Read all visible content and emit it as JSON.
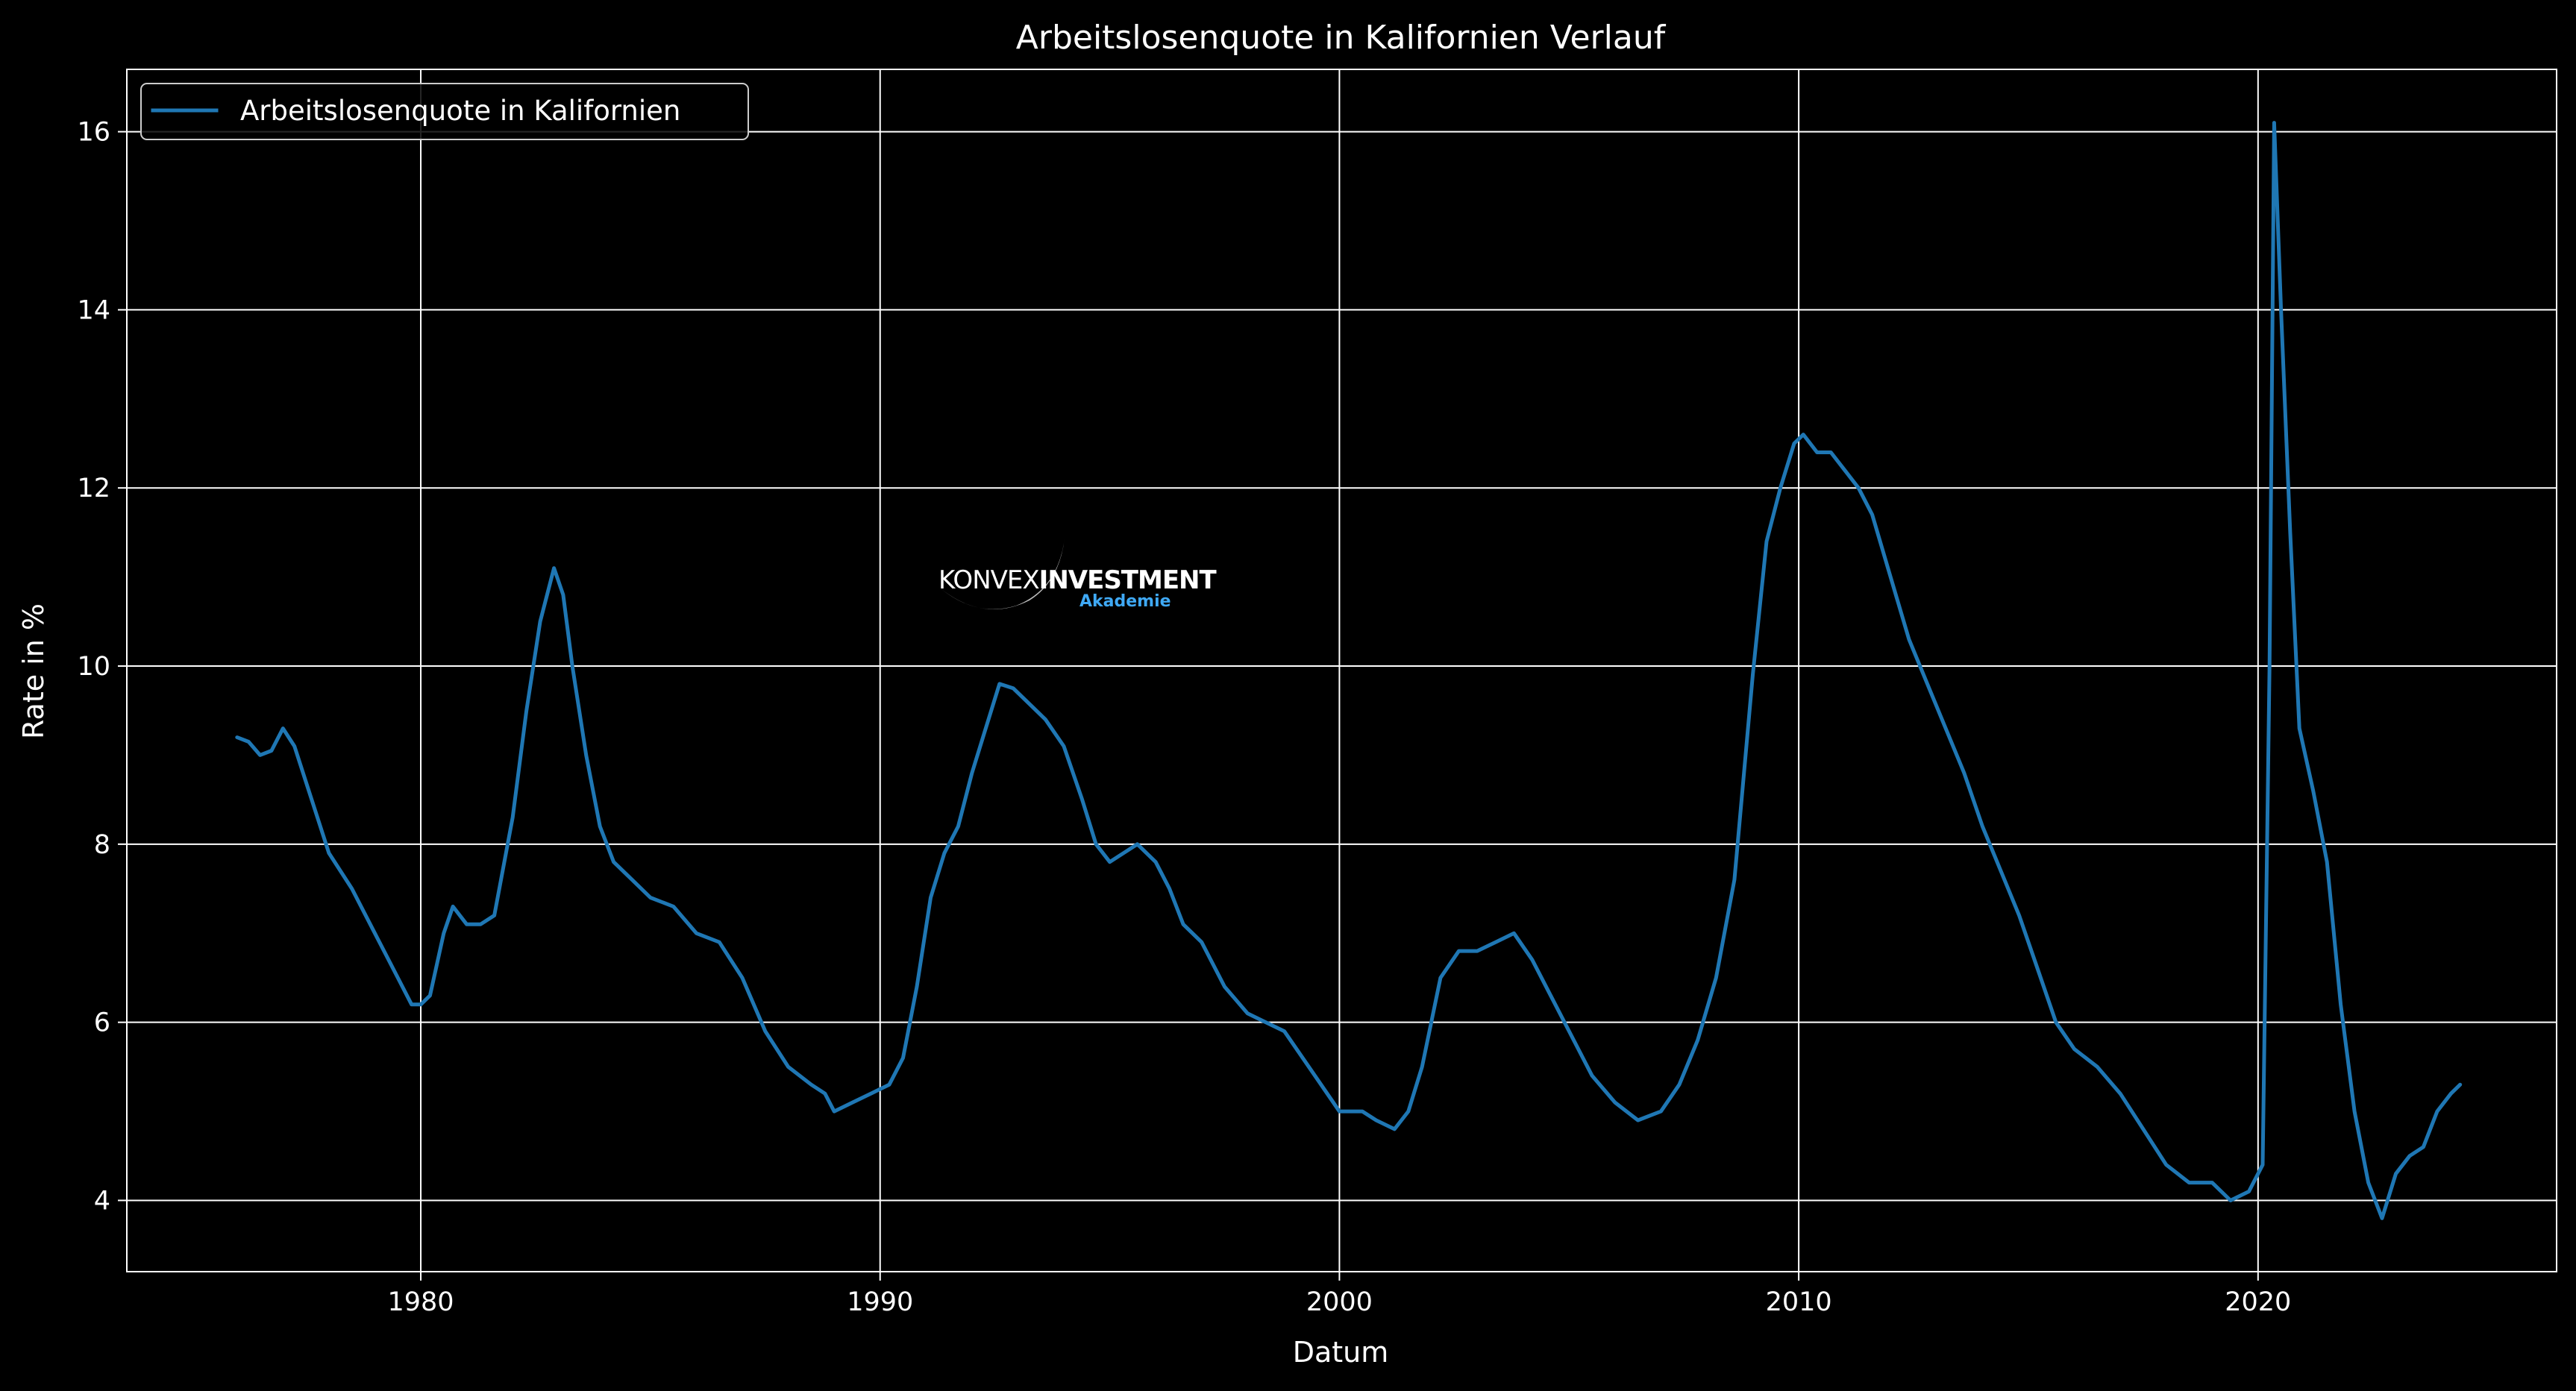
{
  "chart_data": {
    "type": "line",
    "title": "Arbeitslosenquote in Kalifornien Verlauf",
    "xlabel": "Datum",
    "ylabel": "Rate in %",
    "xlim": [
      1973.6,
      2026.5
    ],
    "ylim": [
      3.2,
      16.7
    ],
    "x_ticks": [
      1980,
      1990,
      2000,
      2010,
      2020
    ],
    "y_ticks": [
      4,
      6,
      8,
      10,
      12,
      14,
      16
    ],
    "grid": true,
    "legend": "top-left",
    "colors": {
      "background": "#000000",
      "axes": "#ffffff",
      "grid": "#ffffff",
      "line": "#1f77b4"
    },
    "watermark": {
      "line1_a": "KONVEX",
      "line1_b": "INVESTMENT",
      "line2": "Akademie"
    },
    "series": [
      {
        "name": "Arbeitslosenquote in Kalifornien",
        "points": [
          [
            1976.0,
            9.2
          ],
          [
            1976.25,
            9.15
          ],
          [
            1976.5,
            9.0
          ],
          [
            1976.75,
            9.05
          ],
          [
            1977.0,
            9.3
          ],
          [
            1977.25,
            9.1
          ],
          [
            1977.5,
            8.7
          ],
          [
            1977.75,
            8.3
          ],
          [
            1978.0,
            7.9
          ],
          [
            1978.5,
            7.5
          ],
          [
            1979.0,
            7.0
          ],
          [
            1979.5,
            6.5
          ],
          [
            1979.8,
            6.2
          ],
          [
            1980.0,
            6.2
          ],
          [
            1980.2,
            6.3
          ],
          [
            1980.5,
            7.0
          ],
          [
            1980.7,
            7.3
          ],
          [
            1981.0,
            7.1
          ],
          [
            1981.3,
            7.1
          ],
          [
            1981.6,
            7.2
          ],
          [
            1982.0,
            8.3
          ],
          [
            1982.3,
            9.5
          ],
          [
            1982.6,
            10.5
          ],
          [
            1982.9,
            11.1
          ],
          [
            1983.1,
            10.8
          ],
          [
            1983.3,
            10.0
          ],
          [
            1983.6,
            9.0
          ],
          [
            1983.9,
            8.2
          ],
          [
            1984.2,
            7.8
          ],
          [
            1984.6,
            7.6
          ],
          [
            1985.0,
            7.4
          ],
          [
            1985.5,
            7.3
          ],
          [
            1986.0,
            7.0
          ],
          [
            1986.5,
            6.9
          ],
          [
            1987.0,
            6.5
          ],
          [
            1987.5,
            5.9
          ],
          [
            1988.0,
            5.5
          ],
          [
            1988.5,
            5.3
          ],
          [
            1988.8,
            5.2
          ],
          [
            1989.0,
            5.0
          ],
          [
            1989.4,
            5.1
          ],
          [
            1989.8,
            5.2
          ],
          [
            1990.2,
            5.3
          ],
          [
            1990.5,
            5.6
          ],
          [
            1990.8,
            6.4
          ],
          [
            1991.1,
            7.4
          ],
          [
            1991.4,
            7.9
          ],
          [
            1991.7,
            8.2
          ],
          [
            1992.0,
            8.8
          ],
          [
            1992.3,
            9.3
          ],
          [
            1992.6,
            9.8
          ],
          [
            1992.9,
            9.75
          ],
          [
            1993.2,
            9.6
          ],
          [
            1993.6,
            9.4
          ],
          [
            1994.0,
            9.1
          ],
          [
            1994.4,
            8.5
          ],
          [
            1994.7,
            8.0
          ],
          [
            1995.0,
            7.8
          ],
          [
            1995.3,
            7.9
          ],
          [
            1995.6,
            8.0
          ],
          [
            1996.0,
            7.8
          ],
          [
            1996.3,
            7.5
          ],
          [
            1996.6,
            7.1
          ],
          [
            1997.0,
            6.9
          ],
          [
            1997.5,
            6.4
          ],
          [
            1998.0,
            6.1
          ],
          [
            1998.4,
            6.0
          ],
          [
            1998.8,
            5.9
          ],
          [
            1999.2,
            5.6
          ],
          [
            1999.6,
            5.3
          ],
          [
            2000.0,
            5.0
          ],
          [
            2000.5,
            5.0
          ],
          [
            2000.8,
            4.9
          ],
          [
            2001.2,
            4.8
          ],
          [
            2001.5,
            5.0
          ],
          [
            2001.8,
            5.5
          ],
          [
            2002.2,
            6.5
          ],
          [
            2002.6,
            6.8
          ],
          [
            2003.0,
            6.8
          ],
          [
            2003.4,
            6.9
          ],
          [
            2003.8,
            7.0
          ],
          [
            2004.2,
            6.7
          ],
          [
            2004.6,
            6.3
          ],
          [
            2005.0,
            5.9
          ],
          [
            2005.5,
            5.4
          ],
          [
            2006.0,
            5.1
          ],
          [
            2006.5,
            4.9
          ],
          [
            2007.0,
            5.0
          ],
          [
            2007.4,
            5.3
          ],
          [
            2007.8,
            5.8
          ],
          [
            2008.2,
            6.5
          ],
          [
            2008.6,
            7.6
          ],
          [
            2009.0,
            9.9
          ],
          [
            2009.3,
            11.4
          ],
          [
            2009.6,
            12.0
          ],
          [
            2009.9,
            12.5
          ],
          [
            2010.1,
            12.6
          ],
          [
            2010.4,
            12.4
          ],
          [
            2010.7,
            12.4
          ],
          [
            2011.0,
            12.2
          ],
          [
            2011.3,
            12.0
          ],
          [
            2011.6,
            11.7
          ],
          [
            2012.0,
            11.0
          ],
          [
            2012.4,
            10.3
          ],
          [
            2012.8,
            9.8
          ],
          [
            2013.2,
            9.3
          ],
          [
            2013.6,
            8.8
          ],
          [
            2014.0,
            8.2
          ],
          [
            2014.4,
            7.7
          ],
          [
            2014.8,
            7.2
          ],
          [
            2015.2,
            6.6
          ],
          [
            2015.6,
            6.0
          ],
          [
            2016.0,
            5.7
          ],
          [
            2016.5,
            5.5
          ],
          [
            2017.0,
            5.2
          ],
          [
            2017.5,
            4.8
          ],
          [
            2018.0,
            4.4
          ],
          [
            2018.5,
            4.2
          ],
          [
            2019.0,
            4.2
          ],
          [
            2019.4,
            4.0
          ],
          [
            2019.8,
            4.1
          ],
          [
            2020.1,
            4.4
          ],
          [
            2020.25,
            10.0
          ],
          [
            2020.35,
            16.1
          ],
          [
            2020.5,
            14.0
          ],
          [
            2020.7,
            11.5
          ],
          [
            2020.9,
            9.3
          ],
          [
            2021.2,
            8.6
          ],
          [
            2021.5,
            7.8
          ],
          [
            2021.8,
            6.2
          ],
          [
            2022.1,
            5.0
          ],
          [
            2022.4,
            4.2
          ],
          [
            2022.7,
            3.8
          ],
          [
            2023.0,
            4.3
          ],
          [
            2023.3,
            4.5
          ],
          [
            2023.6,
            4.6
          ],
          [
            2023.9,
            5.0
          ],
          [
            2024.2,
            5.2
          ],
          [
            2024.4,
            5.3
          ]
        ]
      }
    ]
  }
}
